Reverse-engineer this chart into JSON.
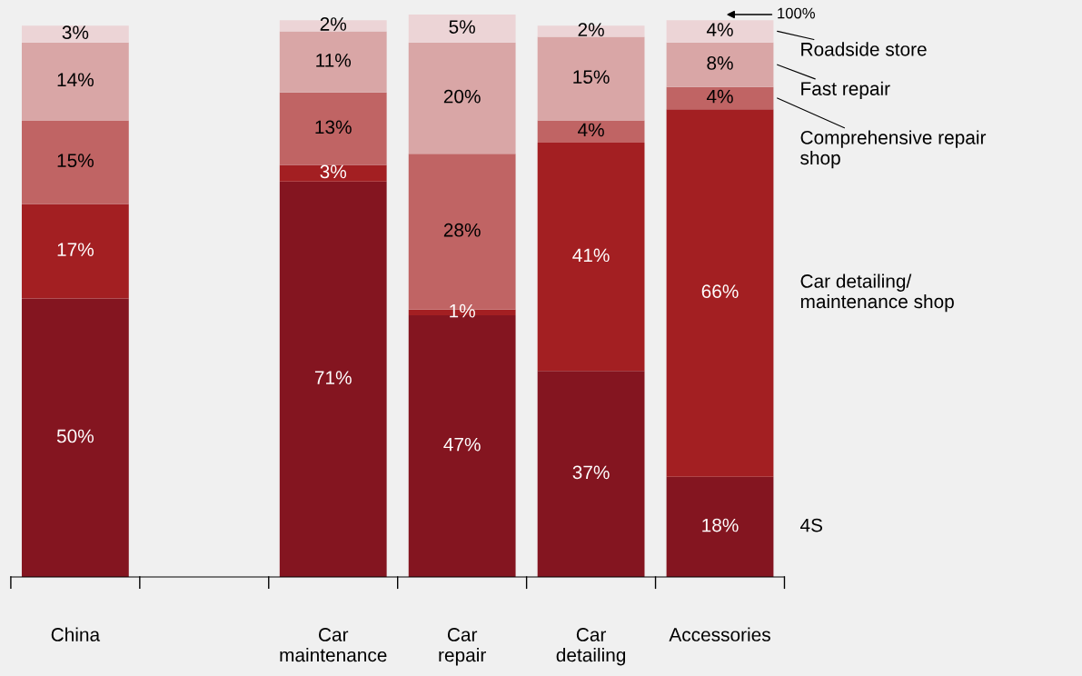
{
  "chart_data": {
    "type": "bar",
    "stacked": true,
    "legend": "right",
    "tick_labels": "x",
    "grid": false,
    "categories": [
      "China",
      null,
      "Car\nmaintenance",
      "Car\nrepair",
      "Car\ndetailing",
      "Accessories"
    ],
    "series": [
      {
        "name": "4S",
        "color": "#841520",
        "values": [
          50,
          null,
          71,
          47,
          37,
          18
        ],
        "value_labels": [
          "50%",
          null,
          "71%",
          "47%",
          "37%",
          "18%"
        ]
      },
      {
        "name": "Car detailing/\nmaintenance shop",
        "color": "#a31f22",
        "values": [
          17,
          null,
          3,
          1,
          41,
          66
        ],
        "value_labels": [
          "17%",
          null,
          "3%",
          "1%",
          "41%",
          "66%"
        ]
      },
      {
        "name": "Comprehensive repair\nshop",
        "color": "#c06464",
        "values": [
          15,
          null,
          13,
          28,
          4,
          4
        ],
        "value_labels": [
          "15%",
          null,
          "13%",
          "28%",
          "4%",
          "4%"
        ]
      },
      {
        "name": "Fast repair",
        "color": "#d9a6a6",
        "values": [
          14,
          null,
          11,
          20,
          15,
          8
        ],
        "value_labels": [
          "14%",
          null,
          "11%",
          "20%",
          "15%",
          "8%"
        ]
      },
      {
        "name": "Roadside store",
        "color": "#ecd4d6",
        "values": [
          3,
          null,
          2,
          5,
          2,
          4
        ],
        "value_labels": [
          "3%",
          null,
          "2%",
          "5%",
          "2%",
          "4%"
        ]
      }
    ],
    "annotations": [
      "100%"
    ]
  }
}
